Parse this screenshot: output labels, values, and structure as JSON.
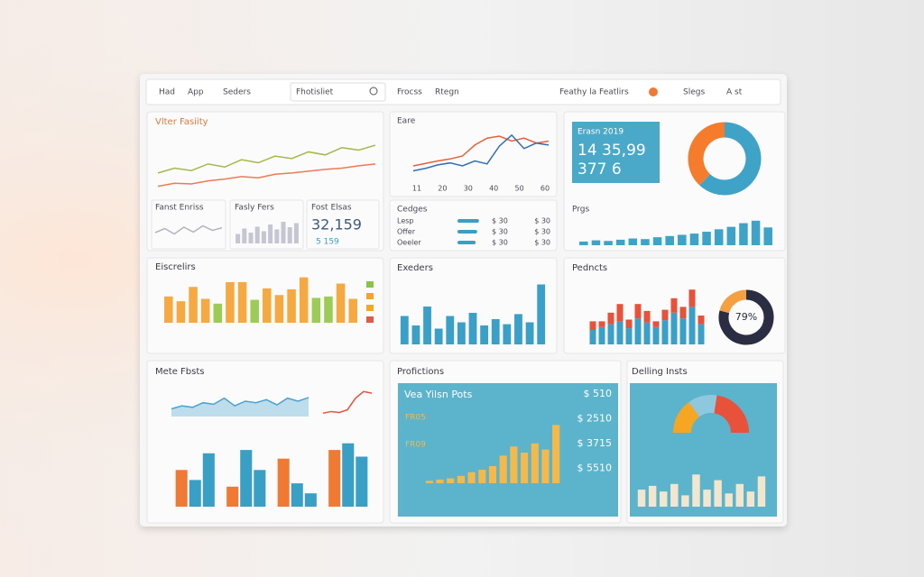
{
  "toolbar": [
    "Had",
    "App",
    "Seders",
    "Fhotisliet",
    "Frocss",
    "Rtegn",
    "Feathy la Featlirs",
    "Slegs",
    "A st"
  ],
  "visitors": {
    "title": "Vlter Fasiity",
    "chart": {
      "ylim": [
        0,
        100
      ],
      "series": [
        {
          "color": "#a6b84a",
          "values": [
            30,
            38,
            34,
            45,
            40,
            52,
            47,
            58,
            54,
            65,
            60,
            72,
            68,
            76
          ]
        },
        {
          "color": "#ec7a55",
          "values": [
            8,
            13,
            12,
            17,
            20,
            24,
            22,
            28,
            30,
            33,
            36,
            38,
            42,
            45
          ]
        }
      ]
    },
    "cards": [
      {
        "title": "Fanst Enriss",
        "chart": {
          "ylim": [
            0,
            100
          ],
          "series": [
            {
              "color": "#b4b4c0",
              "values": [
                40,
                55,
                35,
                60,
                42,
                65,
                48,
                58
              ]
            }
          ]
        }
      },
      {
        "title": "Fasly Fers",
        "bars": {
          "ylim": [
            0,
            100
          ],
          "color": "#c6c6d2",
          "values": [
            35,
            55,
            40,
            62,
            45,
            70,
            52,
            80,
            60,
            75
          ]
        }
      },
      {
        "title": "Fost Elsas",
        "kpi": "32,159",
        "note": "5 159"
      }
    ]
  },
  "earnings": {
    "title": "Eare",
    "chart": {
      "ylim": [
        0,
        100
      ],
      "series": [
        {
          "color": "#e8603a",
          "values": [
            20,
            25,
            30,
            34,
            40,
            62,
            76,
            80,
            70,
            76,
            66,
            70
          ]
        },
        {
          "color": "#2f6fb5",
          "values": [
            10,
            15,
            22,
            26,
            20,
            30,
            24,
            60,
            82,
            55,
            66,
            62
          ]
        }
      ]
    },
    "categories": [
      "11",
      "20",
      "30",
      "40",
      "50",
      "60"
    ],
    "rows_title": "Cedges",
    "rows": [
      {
        "label": "Lesp",
        "value": 85,
        "a": "$ 30",
        "b": "$ 30"
      },
      {
        "label": "Offer",
        "value": 78,
        "a": "$ 30",
        "b": "$ 30"
      },
      {
        "label": "Oeeler",
        "value": 72,
        "a": "$ 30",
        "b": "$ 30"
      }
    ]
  },
  "summary": {
    "label": "Erasn 2019",
    "value": "14 35,99",
    "sub": "377 6",
    "donut": {
      "values": [
        62,
        38
      ],
      "colors": [
        "#3fa3c8",
        "#f47c2c"
      ]
    },
    "bars_title": "Prgs",
    "bars": {
      "ylim": [
        0,
        100
      ],
      "color": "#3fa3c8",
      "values": [
        12,
        16,
        14,
        18,
        22,
        20,
        26,
        30,
        34,
        38,
        44,
        52,
        60,
        72,
        80,
        58
      ]
    }
  },
  "orders": {
    "title": "Eiscrelirs",
    "bars": {
      "ylim": [
        0,
        100
      ],
      "colors": [
        "#f5a940",
        "#f5a940",
        "#f5a940",
        "#f5a940",
        "#9ccc55",
        "#f5a940",
        "#f5a940",
        "#9ccc55",
        "#f5a940",
        "#f5a940",
        "#f5a940",
        "#f5a940",
        "#9ccc55",
        "#9ccc55",
        "#f5a940",
        "#f5a940"
      ],
      "values": [
        55,
        45,
        75,
        50,
        40,
        85,
        85,
        48,
        72,
        58,
        70,
        95,
        52,
        55,
        82,
        50
      ]
    },
    "legend": [
      "#8bc34a",
      "#f5a623",
      "#f5a623",
      "#e05a4a"
    ]
  },
  "exeders": {
    "title": "Exeders",
    "bars": {
      "ylim": [
        0,
        100
      ],
      "color": "#3aa0c8",
      "values": [
        45,
        30,
        60,
        25,
        45,
        35,
        50,
        30,
        40,
        32,
        48,
        35,
        95
      ]
    }
  },
  "products": {
    "title": "Pedncts",
    "stack": {
      "ylim": [
        0,
        100
      ],
      "series": [
        {
          "color": "#3aa0c8",
          "values": [
            25,
            30,
            35,
            40,
            28,
            45,
            38,
            30,
            42,
            55,
            45,
            65,
            35
          ]
        },
        {
          "color": "#e8513a",
          "values": [
            15,
            10,
            20,
            30,
            15,
            25,
            20,
            10,
            18,
            25,
            20,
            30,
            15
          ]
        }
      ]
    },
    "donut": {
      "values": [
        79,
        21
      ],
      "colors": [
        "#2b2d42",
        "#f5a040"
      ],
      "label": "79%"
    }
  },
  "meta": {
    "title": "Mete Fbsts",
    "area": {
      "ylim": [
        0,
        100
      ],
      "series": [
        {
          "color": "#4aa3cf",
          "values": [
            25,
            35,
            30,
            45,
            40,
            60,
            35,
            50,
            45,
            55,
            38,
            60,
            50,
            62
          ]
        }
      ]
    },
    "spark": {
      "ylim": [
        0,
        100
      ],
      "series": [
        {
          "color": "#e8513a",
          "values": [
            10,
            15,
            12,
            20,
            55,
            75,
            70
          ]
        }
      ]
    },
    "groups": {
      "ylim": [
        0,
        100
      ],
      "series": [
        {
          "color": "#f07a33",
          "values": [
            55,
            30,
            72,
            85
          ]
        },
        {
          "color": "#3a9fc4",
          "values": [
            40,
            85,
            35,
            95
          ]
        },
        {
          "color": "#3a9fc4",
          "values": [
            80,
            55,
            20,
            75
          ]
        }
      ]
    }
  },
  "projections": {
    "title": "Profictions",
    "heading": "Vea Yilsn Pots",
    "amounts": [
      "$ 510",
      "$ 2510",
      "$ 3715",
      "$ 5510"
    ],
    "tags": [
      "FR05",
      "FR09"
    ],
    "bars": {
      "ylim": [
        0,
        100
      ],
      "color": "#f5b84a",
      "values": [
        4,
        6,
        8,
        12,
        18,
        22,
        28,
        45,
        60,
        50,
        65,
        55,
        95
      ]
    }
  },
  "selling": {
    "title": "Delling Insts",
    "semi": {
      "values": [
        30,
        25,
        45
      ],
      "colors": [
        "#f5a623",
        "#8ec8de",
        "#e8513a"
      ]
    },
    "bars": {
      "ylim": [
        0,
        100
      ],
      "color": "#f3e6cf",
      "values": [
        45,
        55,
        40,
        60,
        30,
        85,
        45,
        70,
        35,
        60,
        40,
        80
      ]
    }
  }
}
